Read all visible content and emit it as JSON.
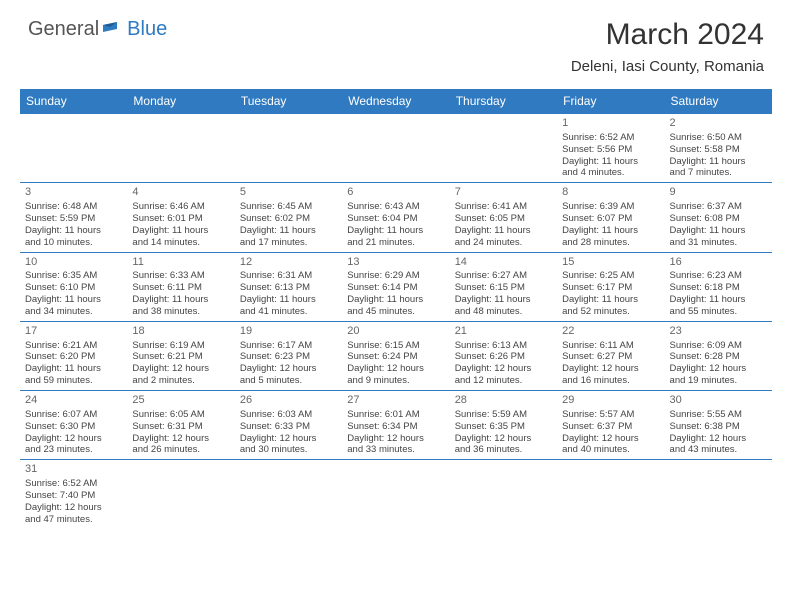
{
  "logo": {
    "part1": "General",
    "part2": "Blue"
  },
  "title": "March 2024",
  "location": "Deleni, Iasi County, Romania",
  "colors": {
    "header_bg": "#2f7ac0",
    "header_text": "#ffffff",
    "border": "#2f7ac0",
    "logo_gray": "#555555",
    "logo_blue": "#2f7ac0"
  },
  "weekdays": [
    "Sunday",
    "Monday",
    "Tuesday",
    "Wednesday",
    "Thursday",
    "Friday",
    "Saturday"
  ],
  "leading_blanks": 5,
  "days": [
    {
      "n": "1",
      "sr": "Sunrise: 6:52 AM",
      "ss": "Sunset: 5:56 PM",
      "d1": "Daylight: 11 hours",
      "d2": "and 4 minutes."
    },
    {
      "n": "2",
      "sr": "Sunrise: 6:50 AM",
      "ss": "Sunset: 5:58 PM",
      "d1": "Daylight: 11 hours",
      "d2": "and 7 minutes."
    },
    {
      "n": "3",
      "sr": "Sunrise: 6:48 AM",
      "ss": "Sunset: 5:59 PM",
      "d1": "Daylight: 11 hours",
      "d2": "and 10 minutes."
    },
    {
      "n": "4",
      "sr": "Sunrise: 6:46 AM",
      "ss": "Sunset: 6:01 PM",
      "d1": "Daylight: 11 hours",
      "d2": "and 14 minutes."
    },
    {
      "n": "5",
      "sr": "Sunrise: 6:45 AM",
      "ss": "Sunset: 6:02 PM",
      "d1": "Daylight: 11 hours",
      "d2": "and 17 minutes."
    },
    {
      "n": "6",
      "sr": "Sunrise: 6:43 AM",
      "ss": "Sunset: 6:04 PM",
      "d1": "Daylight: 11 hours",
      "d2": "and 21 minutes."
    },
    {
      "n": "7",
      "sr": "Sunrise: 6:41 AM",
      "ss": "Sunset: 6:05 PM",
      "d1": "Daylight: 11 hours",
      "d2": "and 24 minutes."
    },
    {
      "n": "8",
      "sr": "Sunrise: 6:39 AM",
      "ss": "Sunset: 6:07 PM",
      "d1": "Daylight: 11 hours",
      "d2": "and 28 minutes."
    },
    {
      "n": "9",
      "sr": "Sunrise: 6:37 AM",
      "ss": "Sunset: 6:08 PM",
      "d1": "Daylight: 11 hours",
      "d2": "and 31 minutes."
    },
    {
      "n": "10",
      "sr": "Sunrise: 6:35 AM",
      "ss": "Sunset: 6:10 PM",
      "d1": "Daylight: 11 hours",
      "d2": "and 34 minutes."
    },
    {
      "n": "11",
      "sr": "Sunrise: 6:33 AM",
      "ss": "Sunset: 6:11 PM",
      "d1": "Daylight: 11 hours",
      "d2": "and 38 minutes."
    },
    {
      "n": "12",
      "sr": "Sunrise: 6:31 AM",
      "ss": "Sunset: 6:13 PM",
      "d1": "Daylight: 11 hours",
      "d2": "and 41 minutes."
    },
    {
      "n": "13",
      "sr": "Sunrise: 6:29 AM",
      "ss": "Sunset: 6:14 PM",
      "d1": "Daylight: 11 hours",
      "d2": "and 45 minutes."
    },
    {
      "n": "14",
      "sr": "Sunrise: 6:27 AM",
      "ss": "Sunset: 6:15 PM",
      "d1": "Daylight: 11 hours",
      "d2": "and 48 minutes."
    },
    {
      "n": "15",
      "sr": "Sunrise: 6:25 AM",
      "ss": "Sunset: 6:17 PM",
      "d1": "Daylight: 11 hours",
      "d2": "and 52 minutes."
    },
    {
      "n": "16",
      "sr": "Sunrise: 6:23 AM",
      "ss": "Sunset: 6:18 PM",
      "d1": "Daylight: 11 hours",
      "d2": "and 55 minutes."
    },
    {
      "n": "17",
      "sr": "Sunrise: 6:21 AM",
      "ss": "Sunset: 6:20 PM",
      "d1": "Daylight: 11 hours",
      "d2": "and 59 minutes."
    },
    {
      "n": "18",
      "sr": "Sunrise: 6:19 AM",
      "ss": "Sunset: 6:21 PM",
      "d1": "Daylight: 12 hours",
      "d2": "and 2 minutes."
    },
    {
      "n": "19",
      "sr": "Sunrise: 6:17 AM",
      "ss": "Sunset: 6:23 PM",
      "d1": "Daylight: 12 hours",
      "d2": "and 5 minutes."
    },
    {
      "n": "20",
      "sr": "Sunrise: 6:15 AM",
      "ss": "Sunset: 6:24 PM",
      "d1": "Daylight: 12 hours",
      "d2": "and 9 minutes."
    },
    {
      "n": "21",
      "sr": "Sunrise: 6:13 AM",
      "ss": "Sunset: 6:26 PM",
      "d1": "Daylight: 12 hours",
      "d2": "and 12 minutes."
    },
    {
      "n": "22",
      "sr": "Sunrise: 6:11 AM",
      "ss": "Sunset: 6:27 PM",
      "d1": "Daylight: 12 hours",
      "d2": "and 16 minutes."
    },
    {
      "n": "23",
      "sr": "Sunrise: 6:09 AM",
      "ss": "Sunset: 6:28 PM",
      "d1": "Daylight: 12 hours",
      "d2": "and 19 minutes."
    },
    {
      "n": "24",
      "sr": "Sunrise: 6:07 AM",
      "ss": "Sunset: 6:30 PM",
      "d1": "Daylight: 12 hours",
      "d2": "and 23 minutes."
    },
    {
      "n": "25",
      "sr": "Sunrise: 6:05 AM",
      "ss": "Sunset: 6:31 PM",
      "d1": "Daylight: 12 hours",
      "d2": "and 26 minutes."
    },
    {
      "n": "26",
      "sr": "Sunrise: 6:03 AM",
      "ss": "Sunset: 6:33 PM",
      "d1": "Daylight: 12 hours",
      "d2": "and 30 minutes."
    },
    {
      "n": "27",
      "sr": "Sunrise: 6:01 AM",
      "ss": "Sunset: 6:34 PM",
      "d1": "Daylight: 12 hours",
      "d2": "and 33 minutes."
    },
    {
      "n": "28",
      "sr": "Sunrise: 5:59 AM",
      "ss": "Sunset: 6:35 PM",
      "d1": "Daylight: 12 hours",
      "d2": "and 36 minutes."
    },
    {
      "n": "29",
      "sr": "Sunrise: 5:57 AM",
      "ss": "Sunset: 6:37 PM",
      "d1": "Daylight: 12 hours",
      "d2": "and 40 minutes."
    },
    {
      "n": "30",
      "sr": "Sunrise: 5:55 AM",
      "ss": "Sunset: 6:38 PM",
      "d1": "Daylight: 12 hours",
      "d2": "and 43 minutes."
    },
    {
      "n": "31",
      "sr": "Sunrise: 6:52 AM",
      "ss": "Sunset: 7:40 PM",
      "d1": "Daylight: 12 hours",
      "d2": "and 47 minutes."
    }
  ]
}
